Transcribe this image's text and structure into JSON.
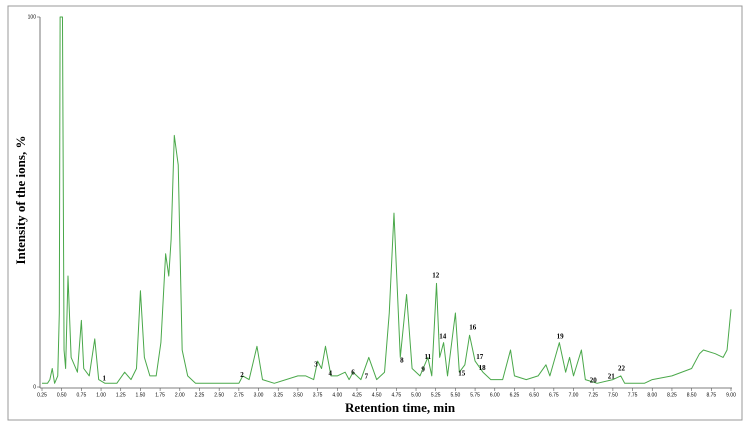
{
  "chart_data": {
    "type": "line",
    "xlabel": "Retention time, min",
    "ylabel": "Intensity of the ions, %",
    "color": "#4aa84a",
    "xlim": [
      0.25,
      9.0
    ],
    "ylim": [
      0,
      100
    ],
    "yticks": [
      0,
      100
    ],
    "xticks": [
      0.25,
      {
        "value": 0.5,
        "label": "0.50"
      },
      0.75,
      {
        "value": 1,
        "label": "1.00"
      },
      1.25,
      {
        "value": 1.5,
        "label": "1.50"
      },
      1.75,
      {
        "value": 2,
        "label": "2.00"
      },
      2.25,
      {
        "value": 2.5,
        "label": "2.50"
      },
      2.75,
      {
        "value": 3,
        "label": "3.00"
      },
      3.25,
      {
        "value": 3.5,
        "label": "3.50"
      },
      3.75,
      {
        "value": 4,
        "label": "4.00"
      },
      4.25,
      {
        "value": 4.5,
        "label": "4.50"
      },
      4.75,
      {
        "value": 5,
        "label": "5.00"
      },
      5.25,
      {
        "value": 5.5,
        "label": "5.50"
      },
      5.75,
      {
        "value": 6,
        "label": "6.00"
      },
      6.25,
      {
        "value": 6.5,
        "label": "6.50"
      },
      6.75,
      {
        "value": 7,
        "label": "7.00"
      },
      7.25,
      {
        "value": 7.5,
        "label": "7.50"
      },
      7.75,
      {
        "value": 8,
        "label": "8.00"
      },
      8.25,
      {
        "value": 8.5,
        "label": "8.50"
      },
      8.75,
      {
        "value": 9,
        "label": "9.00"
      }
    ],
    "x": [
      0.25,
      0.32,
      0.35,
      0.38,
      0.41,
      0.45,
      0.47,
      0.48,
      0.51,
      0.53,
      0.55,
      0.58,
      0.62,
      0.7,
      0.75,
      0.78,
      0.85,
      0.92,
      0.97,
      1.05,
      1.2,
      1.3,
      1.38,
      1.45,
      1.5,
      1.55,
      1.62,
      1.7,
      1.76,
      1.82,
      1.86,
      1.89,
      1.93,
      1.98,
      2.03,
      2.1,
      2.2,
      2.5,
      2.75,
      2.8,
      2.88,
      2.98,
      3.05,
      3.2,
      3.5,
      3.6,
      3.7,
      3.75,
      3.8,
      3.85,
      3.92,
      4.0,
      4.1,
      4.15,
      4.2,
      4.3,
      4.4,
      4.5,
      4.6,
      4.66,
      4.72,
      4.8,
      4.88,
      4.95,
      5.05,
      5.15,
      5.2,
      5.26,
      5.3,
      5.35,
      5.4,
      5.5,
      5.55,
      5.62,
      5.68,
      5.75,
      5.85,
      5.95,
      6.1,
      6.2,
      6.25,
      6.4,
      6.55,
      6.65,
      6.7,
      6.82,
      6.9,
      6.95,
      7.0,
      7.1,
      7.15,
      7.3,
      7.5,
      7.6,
      7.65,
      7.9,
      8.0,
      8.25,
      8.5,
      8.6,
      8.65,
      8.8,
      8.9,
      8.95,
      9.0
    ],
    "values": [
      1,
      1,
      2,
      5,
      1,
      3,
      20,
      100,
      100,
      10,
      5,
      30,
      8,
      4,
      18,
      5,
      3,
      13,
      2,
      1,
      1,
      4,
      2,
      5,
      26,
      8,
      3,
      3,
      12,
      36,
      30,
      40,
      68,
      60,
      10,
      3,
      1,
      1,
      1,
      3,
      2,
      11,
      2,
      1,
      3,
      3,
      2,
      7,
      5,
      11,
      3,
      3,
      4,
      2,
      4,
      2,
      8,
      2,
      4,
      20,
      47,
      8,
      25,
      5,
      3,
      8,
      3,
      28,
      8,
      12,
      3,
      20,
      4,
      6,
      14,
      7,
      4,
      2,
      2,
      10,
      3,
      2,
      3,
      6,
      3,
      12,
      4,
      8,
      3,
      10,
      2,
      1,
      2,
      3,
      1,
      1,
      2,
      3,
      5,
      9,
      10,
      9,
      8,
      10,
      21
    ],
    "annotations": [
      {
        "text": "1",
        "x": 1.04,
        "y": 2.2
      },
      {
        "text": "2",
        "x": 2.79,
        "y": 3.2
      },
      {
        "text": "3",
        "x": 3.73,
        "y": 6
      },
      {
        "text": "4",
        "x": 3.91,
        "y": 3.5
      },
      {
        "text": "6",
        "x": 4.2,
        "y": 3.8
      },
      {
        "text": "7",
        "x": 4.37,
        "y": 2.7
      },
      {
        "text": "8",
        "x": 4.82,
        "y": 7
      },
      {
        "text": "9",
        "x": 5.09,
        "y": 4.6
      },
      {
        "text": "11",
        "x": 5.15,
        "y": 8
      },
      {
        "text": "12",
        "x": 5.25,
        "y": 30
      },
      {
        "text": "14",
        "x": 5.34,
        "y": 13.5
      },
      {
        "text": "15",
        "x": 5.58,
        "y": 3.5
      },
      {
        "text": "16",
        "x": 5.72,
        "y": 16
      },
      {
        "text": "17",
        "x": 5.81,
        "y": 8
      },
      {
        "text": "18",
        "x": 5.84,
        "y": 5
      },
      {
        "text": "19",
        "x": 6.83,
        "y": 13.5
      },
      {
        "text": "20",
        "x": 7.25,
        "y": 1.6
      },
      {
        "text": "21",
        "x": 7.48,
        "y": 2.7
      },
      {
        "text": "22",
        "x": 7.61,
        "y": 4.9
      }
    ]
  }
}
